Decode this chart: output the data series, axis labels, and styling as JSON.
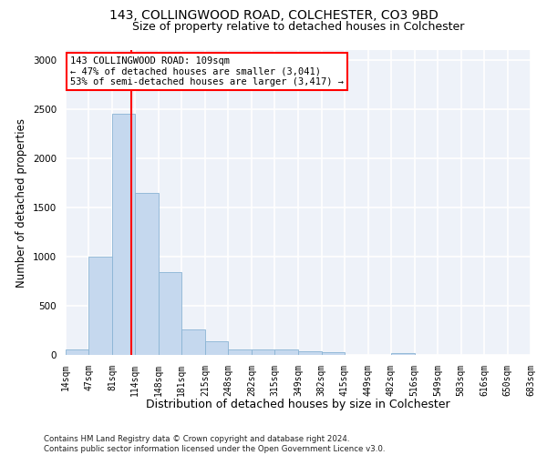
{
  "title": "143, COLLINGWOOD ROAD, COLCHESTER, CO3 9BD",
  "subtitle": "Size of property relative to detached houses in Colchester",
  "xlabel": "Distribution of detached houses by size in Colchester",
  "ylabel": "Number of detached properties",
  "bar_color": "#c5d8ee",
  "bar_edge_color": "#8ab4d4",
  "vline_x": 109,
  "vline_color": "red",
  "annotation_text": "143 COLLINGWOOD ROAD: 109sqm\n← 47% of detached houses are smaller (3,041)\n53% of semi-detached houses are larger (3,417) →",
  "annotation_box_color": "white",
  "annotation_box_edge": "red",
  "footer_line1": "Contains HM Land Registry data © Crown copyright and database right 2024.",
  "footer_line2": "Contains public sector information licensed under the Open Government Licence v3.0.",
  "bin_edges": [
    14,
    47,
    81,
    114,
    148,
    181,
    215,
    248,
    282,
    315,
    349,
    382,
    415,
    449,
    482,
    516,
    549,
    583,
    616,
    650,
    683
  ],
  "bar_heights": [
    55,
    1000,
    2450,
    1650,
    840,
    255,
    140,
    58,
    58,
    52,
    38,
    28,
    0,
    0,
    18,
    0,
    0,
    0,
    0,
    0
  ],
  "ylim": [
    0,
    3100
  ],
  "yticks": [
    0,
    500,
    1000,
    1500,
    2000,
    2500,
    3000
  ],
  "background_color": "#eef2f9",
  "grid_color": "white",
  "title_fontsize": 10,
  "subtitle_fontsize": 9,
  "tick_fontsize": 7,
  "ylabel_fontsize": 8.5,
  "xlabel_fontsize": 9
}
